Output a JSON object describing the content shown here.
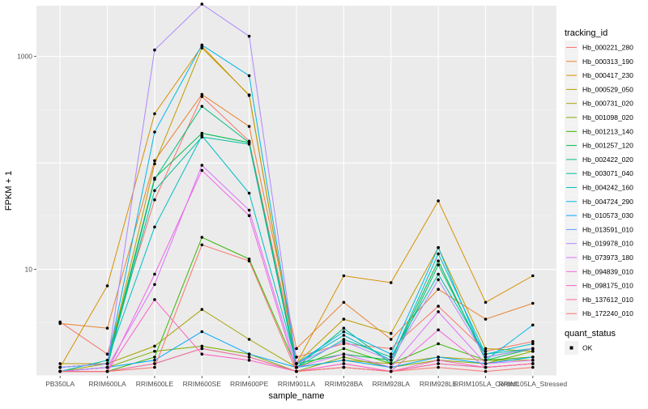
{
  "chart_data": {
    "type": "line",
    "title": "",
    "xlabel": "sample_name",
    "ylabel": "FPKM + 1",
    "yscale": "log10",
    "ylim": [
      1,
      3000
    ],
    "y_ticks": [
      10,
      1000
    ],
    "y_tick_labels": [
      "10",
      "1000"
    ],
    "grid": true,
    "legend_position": "right",
    "categories": [
      "PB350LA",
      "RRIM600LA",
      "RRIM600LE",
      "RRIM600SE",
      "RRIM600PE",
      "RRIM901LA",
      "RRIM928BA",
      "RRIM928LA",
      "RRIM928LE",
      "RRIM105LA_Control",
      "RRIM105LA_Stressed"
    ],
    "category_labels": [
      "PB350LA",
      "RRIM600LA",
      "RRIM600LE",
      "RRIM600SE",
      "RRIM600PE",
      "RRIM901LA",
      "RRIM928BA",
      "RRIM928LA",
      "RRIM928LE",
      "RRIM105LA_Control",
      "RRIM105LA_Stressed"
    ],
    "legend_color_title": "tracking_id",
    "legend_shape_title": "quant_status",
    "shape_entries": [
      {
        "label": "OK"
      }
    ],
    "series": [
      {
        "name": "Hb_000221_280",
        "color": "#F8766D",
        "values": [
          3.2,
          1.6,
          45,
          420,
          160,
          1.5,
          2.0,
          1.8,
          4.5,
          1.7,
          2.1
        ]
      },
      {
        "name": "Hb_000313_190",
        "color": "#EA8331",
        "values": [
          3.1,
          2.8,
          105,
          440,
          220,
          1.8,
          4.9,
          2.2,
          6.5,
          3.4,
          4.8
        ]
      },
      {
        "name": "Hb_000417_230",
        "color": "#D89000",
        "values": [
          1.2,
          7.0,
          290,
          1250,
          430,
          1.3,
          8.7,
          7.5,
          44,
          4.9,
          8.7
        ]
      },
      {
        "name": "Hb_000529_050",
        "color": "#C09B00",
        "values": [
          1.3,
          1.3,
          98,
          1200,
          435,
          1.3,
          3.4,
          2.5,
          16,
          1.8,
          1.7
        ]
      },
      {
        "name": "Hb_000731_020",
        "color": "#A3A500",
        "values": [
          1.1,
          1.3,
          1.9,
          4.2,
          2.2,
          1.2,
          1.4,
          1.3,
          1.5,
          1.4,
          1.4
        ]
      },
      {
        "name": "Hb_001098_020",
        "color": "#7CAE00",
        "values": [
          1.1,
          1.2,
          1.7,
          1.9,
          1.6,
          1.1,
          1.5,
          1.2,
          1.4,
          1.3,
          1.7
        ]
      },
      {
        "name": "Hb_001213_140",
        "color": "#39B600",
        "values": [
          1.1,
          1.1,
          1.5,
          20,
          12.5,
          1.2,
          1.8,
          1.3,
          2.0,
          1.4,
          1.5
        ]
      },
      {
        "name": "Hb_001257_120",
        "color": "#00BB4E",
        "values": [
          1.2,
          1.3,
          72,
          190,
          155,
          1.3,
          1.6,
          1.4,
          12,
          1.4,
          1.8
        ]
      },
      {
        "name": "Hb_002422_020",
        "color": "#00BF7D",
        "values": [
          1.1,
          1.2,
          70,
          340,
          155,
          1.2,
          2.8,
          1.3,
          11,
          1.5,
          1.8
        ]
      },
      {
        "name": "Hb_003071_040",
        "color": "#00C1A3",
        "values": [
          1.2,
          1.3,
          55,
          175,
          150,
          1.2,
          2.2,
          1.5,
          9,
          1.6,
          1.8
        ]
      },
      {
        "name": "Hb_004242_160",
        "color": "#00BFC4",
        "values": [
          1.1,
          1.4,
          25,
          180,
          52,
          1.3,
          2.4,
          1.4,
          14,
          1.6,
          2.0
        ]
      },
      {
        "name": "Hb_004724_290",
        "color": "#00B8E7",
        "values": [
          1.2,
          1.3,
          195,
          1280,
          660,
          1.3,
          2.6,
          1.6,
          16,
          1.4,
          3.0
        ]
      },
      {
        "name": "Hb_010573_030",
        "color": "#00A9FF",
        "values": [
          1.1,
          1.2,
          1.4,
          2.6,
          1.6,
          1.2,
          1.4,
          1.2,
          1.5,
          1.3,
          1.5
        ]
      },
      {
        "name": "Hb_013591_010",
        "color": "#619CFF",
        "values": [
          1.1,
          1.1,
          1.3,
          1.8,
          1.5,
          1.1,
          1.2,
          1.1,
          1.3,
          1.2,
          1.3
        ]
      },
      {
        "name": "Hb_019978_010",
        "color": "#AE87FF",
        "values": [
          1.2,
          1.3,
          1150,
          3100,
          1550,
          1.3,
          2.1,
          1.4,
          8,
          1.5,
          1.8
        ]
      },
      {
        "name": "Hb_073973_180",
        "color": "#DB72FB",
        "values": [
          1.1,
          1.2,
          7.2,
          95,
          36,
          1.2,
          1.6,
          1.2,
          4.0,
          1.3,
          1.4
        ]
      },
      {
        "name": "Hb_094839_010",
        "color": "#F564E3",
        "values": [
          1.1,
          1.1,
          9.0,
          85,
          32,
          1.1,
          1.3,
          1.1,
          2.7,
          1.2,
          1.3
        ]
      },
      {
        "name": "Hb_098175_010",
        "color": "#FF61C3",
        "values": [
          1.1,
          1.1,
          5.2,
          1.6,
          1.4,
          1.1,
          1.3,
          1.1,
          1.4,
          1.2,
          1.3
        ]
      },
      {
        "name": "Hb_137612_010",
        "color": "#FF6C91",
        "values": [
          1.1,
          1.1,
          1.3,
          1.8,
          1.5,
          1.1,
          1.2,
          1.1,
          1.3,
          1.2,
          1.3
        ]
      },
      {
        "name": "Hb_172240_010",
        "color": "#F8766D",
        "values": [
          1.1,
          1.1,
          1.2,
          17,
          12,
          1.1,
          1.2,
          1.1,
          1.2,
          1.1,
          1.2
        ]
      }
    ]
  }
}
